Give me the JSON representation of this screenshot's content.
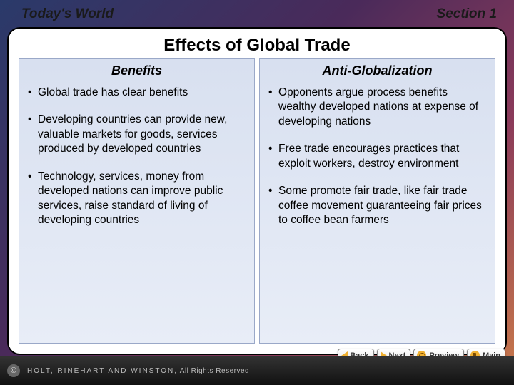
{
  "header": {
    "left": "Today's World",
    "right": "Section 1"
  },
  "title": "Effects of Global Trade",
  "columns": [
    {
      "title": "Benefits",
      "bullets": [
        "Global trade has clear benefits",
        "Developing countries can provide new, valuable markets for goods, services produced by developed countries",
        "Technology, services, money from developed nations can improve public services, raise standard of living of developing countries"
      ]
    },
    {
      "title": "Anti-Globalization",
      "bullets": [
        "Opponents argue process benefits wealthy developed nations at expense of developing nations",
        "Free trade encourages practices that exploit workers, destroy environment",
        "Some promote fair trade, like fair trade coffee movement guaranteeing fair prices to coffee bean farmers"
      ]
    }
  ],
  "nav": {
    "back": "Back",
    "next": "Next",
    "preview": "Preview",
    "main": "Main"
  },
  "footer": {
    "copyright_symbol": "©",
    "brand": "HOLT, RINEHART AND WINSTON,",
    "rights": " All Rights Reserved"
  },
  "colors": {
    "column_bg_top": "#d8e0f0",
    "column_bg_bottom": "#e8edf7",
    "column_border": "#9aa8c8",
    "nav_accent": "#f0b030",
    "frame_bg": "#ffffff",
    "footer_bg": "#111111"
  }
}
